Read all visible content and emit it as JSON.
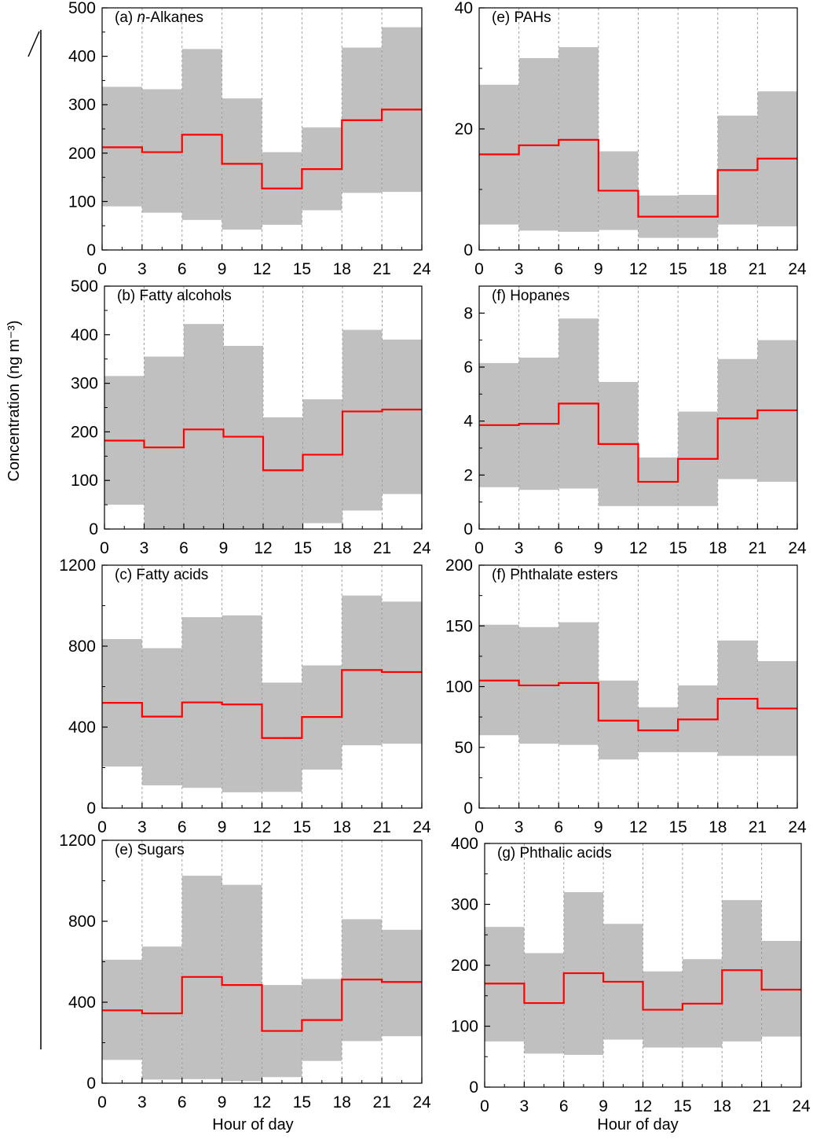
{
  "figure": {
    "ylabel_shared": "Concentration (ng m⁻³)",
    "xlabel_left": "Hour of day",
    "xlabel_right": "Hour of day",
    "colors": {
      "median_line": "#ff0000",
      "band_fill": "#c0c0c0",
      "grid": "#a0a0a0",
      "axis": "#000000"
    }
  },
  "chart_data": [
    {
      "type": "line",
      "title": "(a) n-Alkanes",
      "x_edges": [
        0,
        3,
        6,
        9,
        12,
        15,
        18,
        21,
        24
      ],
      "xticks": [
        0,
        3,
        6,
        9,
        12,
        15,
        18,
        21,
        24
      ],
      "xlim": [
        0,
        24
      ],
      "ylim": [
        0,
        500
      ],
      "yticks": [
        0,
        100,
        200,
        300,
        400,
        500
      ],
      "series": [
        {
          "values": [
            212,
            202,
            238,
            178,
            127,
            167,
            268,
            290
          ]
        },
        {
          "values": [
            337,
            332,
            415,
            313,
            202,
            253,
            418,
            460
          ]
        },
        {
          "values": [
            90,
            77,
            62,
            42,
            52,
            82,
            118,
            120
          ]
        }
      ]
    },
    {
      "type": "line",
      "title": "(e) PAHs",
      "x_edges": [
        0,
        3,
        6,
        9,
        12,
        15,
        18,
        21,
        24
      ],
      "xticks": [
        0,
        3,
        6,
        9,
        12,
        15,
        18,
        21,
        24
      ],
      "xlim": [
        0,
        24
      ],
      "ylim": [
        0,
        40
      ],
      "yticks": [
        0,
        20,
        40
      ],
      "series": [
        {
          "values": [
            15.8,
            17.3,
            18.2,
            9.8,
            5.5,
            5.5,
            13.2,
            15.1
          ]
        },
        {
          "values": [
            27.3,
            31.7,
            33.5,
            16.3,
            9.0,
            9.1,
            22.2,
            26.2
          ]
        },
        {
          "values": [
            4.2,
            3.2,
            3.0,
            3.3,
            2.0,
            2.0,
            4.2,
            3.9
          ]
        }
      ]
    },
    {
      "type": "line",
      "title": "(b) Fatty alcohols",
      "x_edges": [
        0,
        3,
        6,
        9,
        12,
        15,
        18,
        21,
        24
      ],
      "xticks": [
        0,
        3,
        6,
        9,
        12,
        15,
        18,
        21,
        24
      ],
      "xlim": [
        0,
        24
      ],
      "ylim": [
        0,
        500
      ],
      "yticks": [
        0,
        100,
        200,
        300,
        400,
        500
      ],
      "series": [
        {
          "values": [
            182,
            168,
            205,
            190,
            121,
            153,
            242,
            246
          ]
        },
        {
          "values": [
            315,
            355,
            422,
            377,
            230,
            267,
            410,
            390
          ]
        },
        {
          "values": [
            50,
            0,
            0,
            0,
            0,
            12,
            38,
            72
          ]
        }
      ]
    },
    {
      "type": "line",
      "title": "(f) Hopanes",
      "x_edges": [
        0,
        3,
        6,
        9,
        12,
        15,
        18,
        21,
        24
      ],
      "xticks": [
        0,
        3,
        6,
        9,
        12,
        15,
        18,
        21,
        24
      ],
      "xlim": [
        0,
        24
      ],
      "ylim": [
        0,
        9
      ],
      "yticks": [
        0,
        2,
        4,
        6,
        8
      ],
      "series": [
        {
          "values": [
            3.85,
            3.9,
            4.65,
            3.15,
            1.75,
            2.6,
            4.1,
            4.4
          ]
        },
        {
          "values": [
            6.15,
            6.35,
            7.8,
            5.45,
            2.65,
            4.35,
            6.3,
            7.0
          ]
        },
        {
          "values": [
            1.55,
            1.45,
            1.5,
            0.85,
            0.85,
            0.85,
            1.85,
            1.75
          ]
        }
      ]
    },
    {
      "type": "line",
      "title": "(c) Fatty acids",
      "x_edges": [
        0,
        3,
        6,
        9,
        12,
        15,
        18,
        21,
        24
      ],
      "xticks": [
        0,
        3,
        6,
        9,
        12,
        15,
        18,
        21,
        24
      ],
      "xlim": [
        0,
        24
      ],
      "ylim": [
        0,
        1200
      ],
      "yticks": [
        0,
        400,
        800,
        1200
      ],
      "series": [
        {
          "values": [
            520,
            452,
            522,
            512,
            346,
            450,
            682,
            672
          ]
        },
        {
          "values": [
            835,
            790,
            943,
            952,
            620,
            705,
            1050,
            1020
          ]
        },
        {
          "values": [
            205,
            112,
            100,
            78,
            80,
            190,
            310,
            318
          ]
        }
      ]
    },
    {
      "type": "line",
      "title": "(f) Phthalate esters",
      "x_edges": [
        0,
        3,
        6,
        9,
        12,
        15,
        18,
        21,
        24
      ],
      "xticks": [
        0,
        3,
        6,
        9,
        12,
        15,
        18,
        21,
        24
      ],
      "xlim": [
        0,
        24
      ],
      "ylim": [
        0,
        200
      ],
      "yticks": [
        0,
        50,
        100,
        150,
        200
      ],
      "series": [
        {
          "values": [
            105,
            101,
            103,
            72,
            64,
            73,
            90,
            82
          ]
        },
        {
          "values": [
            151,
            149,
            153,
            105,
            83,
            101,
            138,
            121
          ]
        },
        {
          "values": [
            60,
            53,
            52,
            40,
            46,
            46,
            43,
            43
          ]
        }
      ]
    },
    {
      "type": "line",
      "title": "(e) Sugars",
      "x_edges": [
        0,
        3,
        6,
        9,
        12,
        15,
        18,
        21,
        24
      ],
      "xticks": [
        0,
        3,
        6,
        9,
        12,
        15,
        18,
        21,
        24
      ],
      "xlim": [
        0,
        24
      ],
      "ylim": [
        0,
        1200
      ],
      "yticks": [
        0,
        400,
        800,
        1200
      ],
      "series": [
        {
          "values": [
            360,
            345,
            525,
            485,
            258,
            312,
            512,
            500
          ]
        },
        {
          "values": [
            610,
            675,
            1025,
            980,
            485,
            515,
            810,
            758
          ]
        },
        {
          "values": [
            115,
            18,
            20,
            10,
            30,
            110,
            208,
            232
          ]
        }
      ]
    },
    {
      "type": "line",
      "title": "(g) Phthalic acids",
      "x_edges": [
        0,
        3,
        6,
        9,
        12,
        15,
        18,
        21,
        24
      ],
      "xticks": [
        0,
        3,
        6,
        9,
        12,
        15,
        18,
        21,
        24
      ],
      "xlim": [
        0,
        24
      ],
      "ylim": [
        0,
        400
      ],
      "yticks": [
        0,
        100,
        200,
        300,
        400
      ],
      "series": [
        {
          "values": [
            170,
            138,
            187,
            173,
            127,
            137,
            192,
            160
          ]
        },
        {
          "values": [
            263,
            220,
            320,
            268,
            190,
            210,
            307,
            240
          ]
        },
        {
          "values": [
            75,
            55,
            53,
            78,
            65,
            65,
            75,
            83
          ]
        }
      ]
    }
  ]
}
